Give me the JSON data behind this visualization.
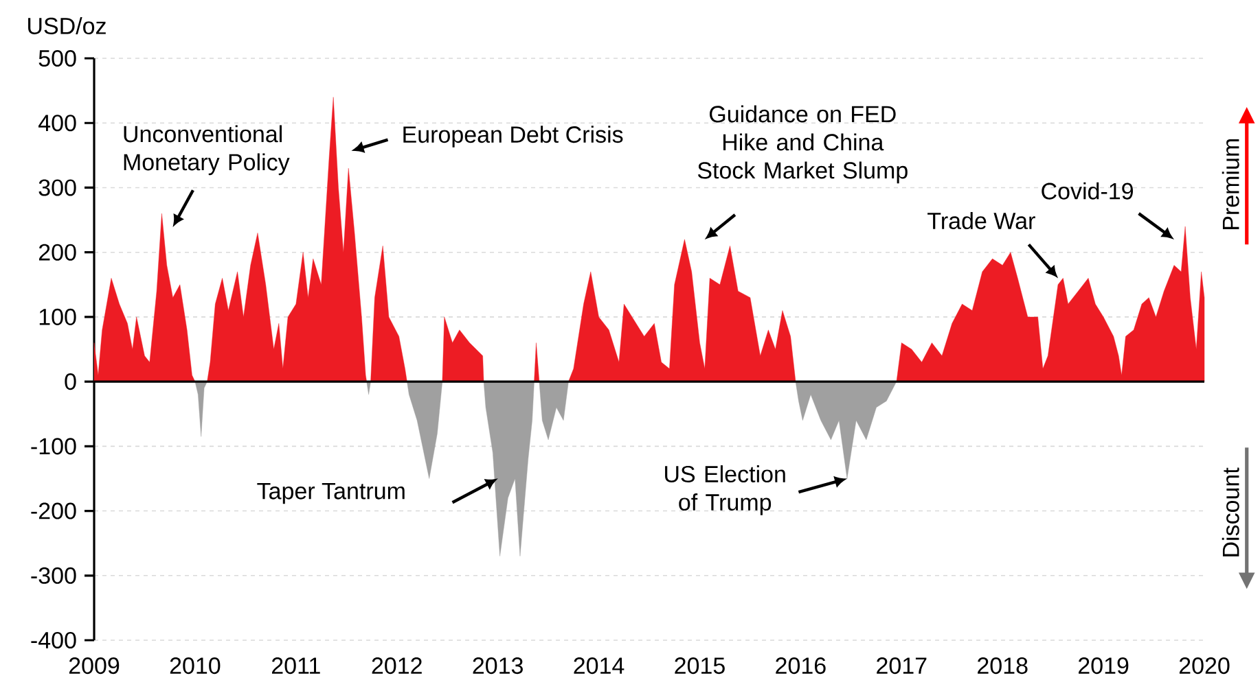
{
  "chart_data": {
    "type": "area",
    "ylabel": "USD/oz",
    "xlim": [
      2009,
      2020
    ],
    "xticks": [
      2009,
      2010,
      2011,
      2012,
      2013,
      2014,
      2015,
      2016,
      2017,
      2018,
      2019,
      2020
    ],
    "ylim": [
      -400,
      500
    ],
    "yticks": [
      -400,
      -300,
      -200,
      -100,
      0,
      100,
      200,
      300,
      400,
      500
    ],
    "grid": "y",
    "series": [
      {
        "color": "#ed1c24",
        "x": [
          2009.0,
          2009.04,
          2009.08,
          2009.17,
          2009.25,
          2009.33,
          2009.38,
          2009.42,
          2009.5,
          2009.55,
          2009.62,
          2009.67,
          2009.72,
          2009.78,
          2009.85,
          2009.92,
          2009.97,
          2010.0,
          2010.06,
          2010.12,
          2010.15,
          2010.2,
          2010.27,
          2010.33,
          2010.42,
          2010.48,
          2010.55,
          2010.62,
          2010.7,
          2010.78,
          2010.83,
          2010.87,
          2010.92,
          2011.0,
          2011.07,
          2011.12,
          2011.17,
          2011.25,
          2011.33,
          2011.37,
          2011.42,
          2011.47,
          2011.52,
          2011.58,
          2011.65,
          2011.69,
          2011.7,
          2011.72,
          2011.74,
          2011.78,
          2011.86,
          2011.92,
          2012.02,
          2012.08,
          2012.1,
          2012.32,
          2012.45,
          2012.47,
          2012.55,
          2012.62,
          2012.72,
          2012.85,
          2012.86,
          2013.1,
          2013.36,
          2013.38,
          2013.41,
          2013.5,
          2013.7,
          2013.75,
          2013.85,
          2013.92,
          2014.0,
          2014.1,
          2014.2,
          2014.25,
          2014.33,
          2014.45,
          2014.55,
          2014.62,
          2014.7,
          2014.75,
          2014.85,
          2014.92,
          2015.0,
          2015.05,
          2015.1,
          2015.2,
          2015.3,
          2015.38,
          2015.5,
          2015.6,
          2015.68,
          2015.75,
          2015.82,
          2015.9,
          2015.95,
          2016.46,
          2016.95,
          2017.0,
          2017.1,
          2017.2,
          2017.3,
          2017.4,
          2017.5,
          2017.6,
          2017.7,
          2017.8,
          2017.9,
          2018.0,
          2018.08,
          2018.15,
          2018.25,
          2018.35,
          2018.4,
          2018.45,
          2018.55,
          2018.6,
          2018.65,
          2018.75,
          2018.85,
          2018.92,
          2019.0,
          2019.1,
          2019.15,
          2019.18,
          2019.22,
          2019.3,
          2019.38,
          2019.45,
          2019.52,
          2019.6,
          2019.7,
          2019.77,
          2019.81,
          2019.86,
          2019.92,
          2019.97,
          2020.0
        ],
        "values": [
          60,
          10,
          80,
          160,
          120,
          90,
          50,
          100,
          40,
          30,
          140,
          260,
          180,
          130,
          150,
          80,
          10,
          0,
          null,
          0,
          30,
          120,
          160,
          110,
          170,
          100,
          180,
          230,
          150,
          50,
          90,
          20,
          100,
          120,
          200,
          130,
          190,
          150,
          350,
          440,
          300,
          200,
          330,
          230,
          100,
          10,
          0,
          null,
          0,
          130,
          210,
          100,
          70,
          20,
          0,
          null,
          0,
          100,
          60,
          80,
          60,
          40,
          0,
          null,
          0,
          60,
          0,
          null,
          0,
          20,
          120,
          170,
          100,
          80,
          30,
          120,
          100,
          70,
          90,
          30,
          20,
          150,
          220,
          170,
          60,
          20,
          160,
          150,
          210,
          140,
          130,
          40,
          80,
          50,
          110,
          70,
          0,
          null,
          0,
          60,
          50,
          30,
          60,
          40,
          90,
          120,
          110,
          170,
          190,
          180,
          200,
          160,
          100,
          100,
          20,
          40,
          150,
          160,
          120,
          140,
          160,
          120,
          100,
          70,
          40,
          10,
          70,
          80,
          120,
          130,
          100,
          140,
          180,
          170,
          240,
          130,
          50,
          170,
          130
        ]
      },
      {
        "color": "#a0a0a0",
        "x": [
          2010.0,
          2010.03,
          2010.06,
          2010.09,
          2010.12,
          2011.0,
          2011.7,
          2011.72,
          2011.74,
          2012.0,
          2012.1,
          2012.12,
          2012.2,
          2012.32,
          2012.4,
          2012.45,
          2012.6,
          2012.86,
          2012.88,
          2012.95,
          2013.02,
          2013.1,
          2013.17,
          2013.22,
          2013.3,
          2013.34,
          2013.36,
          2013.38,
          2013.41,
          2013.44,
          2013.5,
          2013.58,
          2013.65,
          2013.7,
          2015.0,
          2015.95,
          2015.98,
          2016.02,
          2016.1,
          2016.2,
          2016.3,
          2016.38,
          2016.46,
          2016.55,
          2016.65,
          2016.75,
          2016.85,
          2016.95
        ],
        "values": [
          0,
          -20,
          -85,
          -10,
          0,
          null,
          0,
          -20,
          0,
          null,
          0,
          -20,
          -60,
          -150,
          -80,
          0,
          null,
          0,
          -40,
          -110,
          -270,
          -180,
          -150,
          -270,
          -120,
          -60,
          0,
          null,
          0,
          -60,
          -90,
          -40,
          -60,
          0,
          null,
          0,
          -30,
          -60,
          -20,
          -60,
          -90,
          -60,
          -150,
          -60,
          -90,
          -40,
          -30,
          0
        ]
      }
    ],
    "annotations": [
      "Unconventional Monetary Policy",
      "European Debt Crisis",
      "Guidance on FED Hike and China Stock Market Slump",
      "Taper Tantrum",
      {
        "text": "US Election of Trump",
        "x": 2016.46,
        "y": -150
      },
      "Trade War",
      "Covid-19",
      "Premium",
      "Discount"
    ]
  }
}
